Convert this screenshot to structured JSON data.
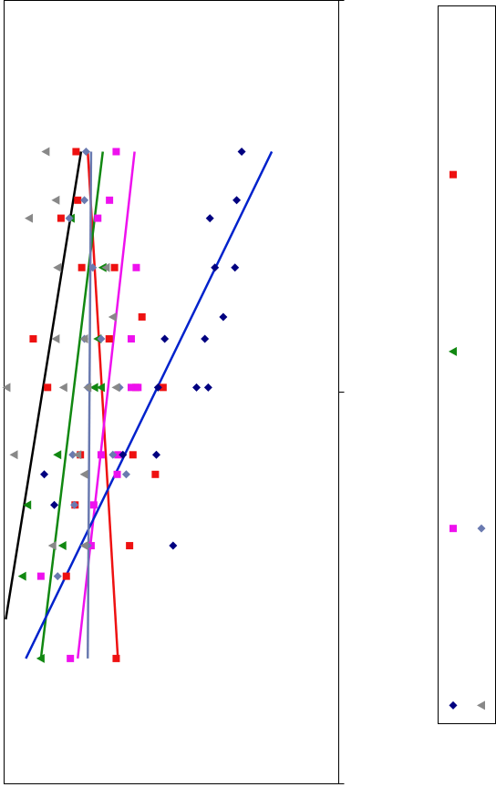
{
  "chart_data": {
    "type": "scatter",
    "title": "",
    "xlabel": "",
    "ylabel": "",
    "xlim": [
      0,
      100
    ],
    "ylim": [
      0,
      100
    ],
    "legend_position": "right",
    "right_axis_ticks": 3,
    "series": [
      {
        "marker": "square",
        "color": "#ee1111",
        "points": [
          [
            21.5,
            80.7
          ],
          [
            22.0,
            74.5
          ],
          [
            17.0,
            72.2
          ],
          [
            23.2,
            65.9
          ],
          [
            33.0,
            65.9
          ],
          [
            41.2,
            59.6
          ],
          [
            8.7,
            56.8
          ],
          [
            31.4,
            56.8
          ],
          [
            13.0,
            50.6
          ],
          [
            39.4,
            50.6
          ],
          [
            47.5,
            50.6
          ],
          [
            22.8,
            42.0
          ],
          [
            38.5,
            42.0
          ],
          [
            45.2,
            39.5
          ],
          [
            21.2,
            35.6
          ],
          [
            37.5,
            30.4
          ],
          [
            18.6,
            26.5
          ],
          [
            33.5,
            16.0
          ]
        ],
        "trend": [
          [
            25.0,
            80.7
          ],
          [
            34.0,
            16.0
          ]
        ],
        "trend_color": "#ee1111"
      },
      {
        "marker": "triangle-left",
        "color": "#118811",
        "points": [
          [
            20.0,
            72.2
          ],
          [
            29.5,
            65.9
          ],
          [
            28.0,
            56.8
          ],
          [
            27.0,
            50.6
          ],
          [
            29.0,
            50.6
          ],
          [
            16.0,
            42.0
          ],
          [
            7.0,
            35.6
          ],
          [
            17.5,
            30.4
          ],
          [
            5.5,
            26.5
          ],
          [
            11.0,
            16.0
          ]
        ],
        "trend": [
          [
            29.5,
            80.7
          ],
          [
            11.0,
            16.0
          ]
        ],
        "trend_color": "#118811"
      },
      {
        "marker": "square",
        "color": "#ee11ee",
        "points": [
          [
            33.5,
            80.7
          ],
          [
            31.5,
            74.5
          ],
          [
            28.0,
            72.2
          ],
          [
            39.5,
            65.9
          ],
          [
            38.0,
            56.8
          ],
          [
            38.0,
            50.6
          ],
          [
            40.0,
            50.6
          ],
          [
            29.0,
            42.0
          ],
          [
            34.0,
            42.0
          ],
          [
            33.8,
            39.5
          ],
          [
            26.8,
            35.6
          ],
          [
            26.0,
            30.4
          ],
          [
            11.0,
            26.5
          ],
          [
            19.8,
            16.0
          ]
        ],
        "trend": [
          [
            39.0,
            80.7
          ],
          [
            22.0,
            16.0
          ]
        ],
        "trend_color": "#ee11ee"
      },
      {
        "marker": "diamond",
        "color": "#000080",
        "points": [
          [
            71.0,
            80.7
          ],
          [
            69.5,
            74.5
          ],
          [
            61.5,
            72.2
          ],
          [
            69.0,
            65.9
          ],
          [
            63.0,
            65.9
          ],
          [
            65.5,
            59.6
          ],
          [
            60.0,
            56.8
          ],
          [
            48.0,
            56.8
          ],
          [
            57.5,
            50.6
          ],
          [
            61.0,
            50.6
          ],
          [
            46.0,
            50.6
          ],
          [
            45.5,
            42.0
          ],
          [
            35.5,
            42.0
          ],
          [
            12.0,
            39.5
          ],
          [
            15.0,
            35.6
          ],
          [
            50.5,
            30.4
          ]
        ],
        "trend": [
          [
            80.0,
            80.7
          ],
          [
            6.5,
            16.0
          ]
        ],
        "trend_color": "#0022cc"
      },
      {
        "marker": "diamond",
        "color": "#6a7ab0",
        "points": [
          [
            24.5,
            80.7
          ],
          [
            24.0,
            74.5
          ],
          [
            19.5,
            72.2
          ],
          [
            26.5,
            65.9
          ],
          [
            29.0,
            56.8
          ],
          [
            24.0,
            56.8
          ],
          [
            34.5,
            50.6
          ],
          [
            25.0,
            50.6
          ],
          [
            20.5,
            42.0
          ],
          [
            32.5,
            42.0
          ],
          [
            36.5,
            39.5
          ],
          [
            21.0,
            35.6
          ],
          [
            25.0,
            30.4
          ],
          [
            16.0,
            26.5
          ]
        ],
        "trend": [
          [
            26.0,
            80.7
          ],
          [
            25.0,
            16.0
          ]
        ],
        "trend_color": "#6a7ab0"
      },
      {
        "marker": "triangle-left",
        "color": "#888888",
        "points": [
          [
            12.5,
            80.7
          ],
          [
            15.5,
            74.5
          ],
          [
            7.5,
            72.2
          ],
          [
            16.0,
            65.9
          ],
          [
            30.5,
            65.9
          ],
          [
            32.5,
            59.6
          ],
          [
            15.5,
            56.8
          ],
          [
            24.0,
            56.8
          ],
          [
            0.8,
            50.6
          ],
          [
            17.8,
            50.6
          ],
          [
            25.0,
            50.6
          ],
          [
            33.5,
            50.6
          ],
          [
            3.0,
            42.0
          ],
          [
            22.0,
            42.0
          ],
          [
            24.0,
            39.5
          ],
          [
            14.5,
            30.4
          ],
          [
            24.0,
            30.4
          ]
        ],
        "trend": [
          [
            23.0,
            80.7
          ],
          [
            0.5,
            21.0
          ]
        ],
        "trend_color": "#000000"
      }
    ],
    "legend": [
      {
        "markers": [
          "square"
        ],
        "colors": [
          "#ee1111"
        ]
      },
      {
        "markers": [
          "triangle-left"
        ],
        "colors": [
          "#118811"
        ]
      },
      {
        "markers": [
          "square",
          "diamond"
        ],
        "colors": [
          "#ee11ee",
          "#6a7ab0"
        ]
      },
      {
        "markers": [
          "diamond",
          "triangle-left"
        ],
        "colors": [
          "#000080",
          "#888888"
        ]
      }
    ]
  }
}
